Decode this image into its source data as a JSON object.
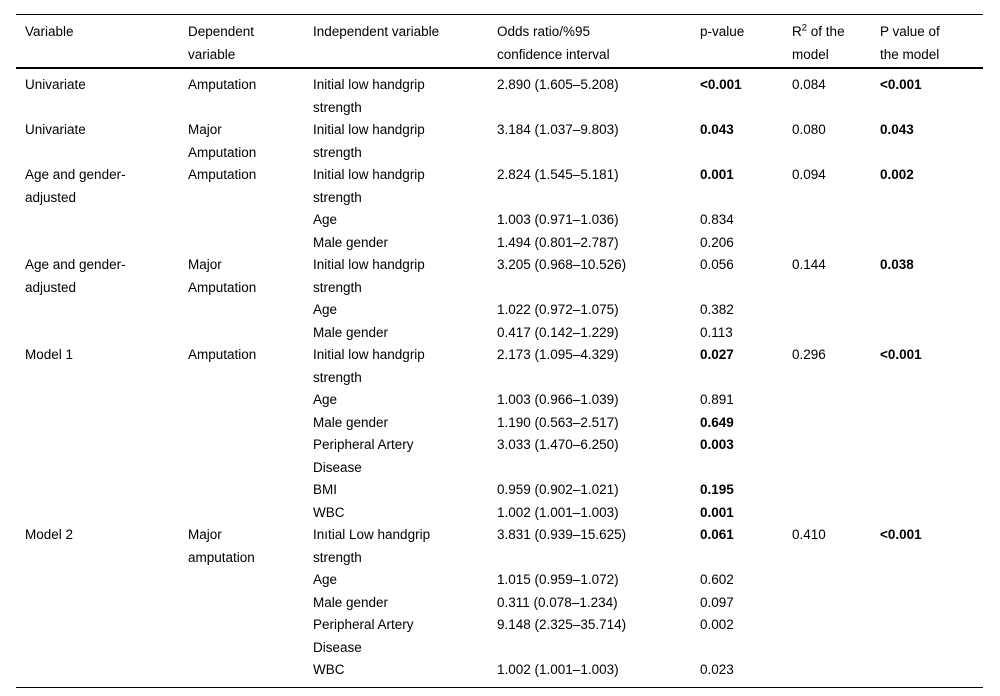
{
  "table": {
    "headers": {
      "variable": "Variable",
      "dependent": "Dependent\nvariable",
      "independent": "Independent variable",
      "odds_ratio": "Odds ratio/%95\nconfidence interval",
      "p_value": "p-value",
      "r2_prefix": "R",
      "r2_sup": "2",
      "r2_suffix": " of the\nmodel",
      "model_p": "P value of\nthe model"
    },
    "rows": [
      {
        "variable": "Univariate",
        "dependent": "Amputation",
        "independent": "Initial low handgrip\nstrength",
        "odds_ratio": "2.890 (1.605–5.208)",
        "p_value": "<0.001",
        "p_bold": true,
        "r2": "0.084",
        "model_p": "<0.001",
        "model_p_bold": true
      },
      {
        "variable": "Univariate",
        "dependent": "Major\nAmputation",
        "independent": "Initial low handgrip\nstrength",
        "odds_ratio": "3.184 (1.037–9.803)",
        "p_value": "0.043",
        "p_bold": true,
        "r2": "0.080",
        "model_p": "0.043",
        "model_p_bold": true
      },
      {
        "variable": "Age and gender-\nadjusted",
        "dependent": "Amputation",
        "independent": "Initial low handgrip\nstrength",
        "odds_ratio": "2.824 (1.545–5.181)",
        "p_value": "0.001",
        "p_bold": true,
        "r2": "0.094",
        "model_p": "0.002",
        "model_p_bold": true
      },
      {
        "variable": "",
        "dependent": "",
        "independent": "Age",
        "odds_ratio": "1.003 (0.971–1.036)",
        "p_value": "0.834",
        "p_bold": false,
        "r2": "",
        "model_p": "",
        "model_p_bold": false
      },
      {
        "variable": "",
        "dependent": "",
        "independent": "Male gender",
        "odds_ratio": "1.494 (0.801–2.787)",
        "p_value": "0.206",
        "p_bold": false,
        "r2": "",
        "model_p": "",
        "model_p_bold": false
      },
      {
        "variable": "Age and gender-\nadjusted",
        "dependent": "Major\nAmputation",
        "independent": "Initial low handgrip\nstrength",
        "odds_ratio": "3.205 (0.968–10.526)",
        "p_value": "0.056",
        "p_bold": false,
        "r2": "0.144",
        "model_p": "0.038",
        "model_p_bold": true
      },
      {
        "variable": "",
        "dependent": "",
        "independent": "Age",
        "odds_ratio": "1.022 (0.972–1.075)",
        "p_value": "0.382",
        "p_bold": false,
        "r2": "",
        "model_p": "",
        "model_p_bold": false
      },
      {
        "variable": "",
        "dependent": "",
        "independent": "Male gender",
        "odds_ratio": "0.417 (0.142–1.229)",
        "p_value": "0.113",
        "p_bold": false,
        "r2": "",
        "model_p": "",
        "model_p_bold": false
      },
      {
        "variable": "Model 1",
        "dependent": "Amputation",
        "independent": "Initial low handgrip\nstrength",
        "odds_ratio": "2.173 (1.095–4.329)",
        "p_value": "0.027",
        "p_bold": true,
        "r2": "0.296",
        "model_p": "<0.001",
        "model_p_bold": true
      },
      {
        "variable": "",
        "dependent": "",
        "independent": "Age",
        "odds_ratio": "1.003 (0.966–1.039)",
        "p_value": "0.891",
        "p_bold": false,
        "r2": "",
        "model_p": "",
        "model_p_bold": false
      },
      {
        "variable": "",
        "dependent": "",
        "independent": "Male gender",
        "odds_ratio": "1.190 (0.563–2.517)",
        "p_value": "0.649",
        "p_bold": true,
        "r2": "",
        "model_p": "",
        "model_p_bold": false
      },
      {
        "variable": "",
        "dependent": "",
        "independent": "Peripheral Artery\nDisease",
        "odds_ratio": "3.033 (1.470–6.250)",
        "p_value": "0.003",
        "p_bold": true,
        "r2": "",
        "model_p": "",
        "model_p_bold": false
      },
      {
        "variable": "",
        "dependent": "",
        "independent": "BMI",
        "odds_ratio": "0.959 (0.902–1.021)",
        "p_value": "0.195",
        "p_bold": true,
        "r2": "",
        "model_p": "",
        "model_p_bold": false
      },
      {
        "variable": "",
        "dependent": "",
        "independent": "WBC",
        "odds_ratio": "1.002 (1.001–1.003)",
        "p_value": "0.001",
        "p_bold": true,
        "r2": "",
        "model_p": "",
        "model_p_bold": false
      },
      {
        "variable": "Model 2",
        "dependent": "Major\namputation",
        "independent": "Inıtial Low handgrip\nstrength",
        "odds_ratio": "3.831 (0.939–15.625)",
        "p_value": "0.061",
        "p_bold": true,
        "r2": "0.410",
        "model_p": "<0.001",
        "model_p_bold": true
      },
      {
        "variable": "",
        "dependent": "",
        "independent": "Age",
        "odds_ratio": "1.015 (0.959–1.072)",
        "p_value": "0.602",
        "p_bold": false,
        "r2": "",
        "model_p": "",
        "model_p_bold": false
      },
      {
        "variable": "",
        "dependent": "",
        "independent": "Male gender",
        "odds_ratio": "0.311 (0.078–1.234)",
        "p_value": "0.097",
        "p_bold": false,
        "r2": "",
        "model_p": "",
        "model_p_bold": false
      },
      {
        "variable": "",
        "dependent": "",
        "independent": "Peripheral Artery\nDisease",
        "odds_ratio": "9.148 (2.325–35.714)",
        "p_value": "0.002",
        "p_bold": false,
        "r2": "",
        "model_p": "",
        "model_p_bold": false
      },
      {
        "variable": "",
        "dependent": "",
        "independent": "WBC",
        "odds_ratio": "1.002 (1.001–1.003)",
        "p_value": "0.023",
        "p_bold": false,
        "r2": "",
        "model_p": "",
        "model_p_bold": false
      }
    ]
  },
  "colors": {
    "text": "#000000",
    "background": "#ffffff",
    "rule": "#000000"
  }
}
